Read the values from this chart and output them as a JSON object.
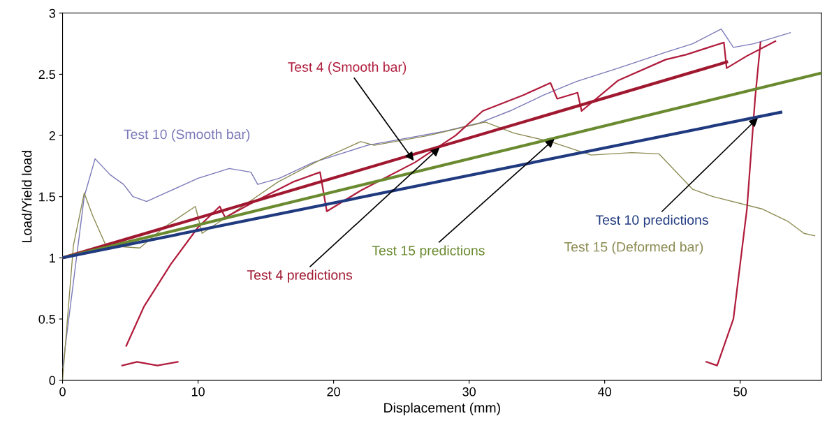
{
  "chart_data": {
    "type": "line",
    "xlabel": "Displacement (mm)",
    "ylabel": "Load/Yield load",
    "xlim": [
      0,
      56
    ],
    "ylim": [
      0,
      3
    ],
    "xticks": [
      0,
      10,
      20,
      30,
      40,
      50
    ],
    "yticks": [
      0,
      0.5,
      1,
      1.5,
      2,
      2.5,
      3
    ],
    "grid": false,
    "legend": false,
    "series": [
      {
        "name": "Test 10 (Smooth bar)",
        "color": "#7a78b8",
        "x": [
          0,
          0.8,
          1.6,
          2.4,
          3.5,
          4.5,
          5.2,
          6.2,
          8,
          10,
          12.3,
          13.9,
          14.4,
          16,
          18.5,
          20.5,
          22.5,
          25,
          28,
          30.7,
          33,
          35.5,
          37.9,
          41,
          44.5,
          46.5,
          48.6,
          49.5,
          51,
          53.7
        ],
        "values": [
          0.1,
          0.8,
          1.5,
          1.81,
          1.68,
          1.6,
          1.5,
          1.46,
          1.55,
          1.65,
          1.73,
          1.7,
          1.6,
          1.65,
          1.78,
          1.85,
          1.92,
          1.97,
          2.03,
          2.1,
          2.2,
          2.33,
          2.44,
          2.55,
          2.68,
          2.75,
          2.87,
          2.72,
          2.75,
          2.84
        ]
      },
      {
        "name": "Test 15 (Deformed bar)",
        "color": "#8c8a52",
        "x": [
          0,
          0.8,
          1.6,
          2.2,
          3.2,
          5.7,
          7.5,
          9.8,
          10.3,
          13,
          15.9,
          19,
          22,
          23,
          27,
          31.2,
          33.3,
          36,
          39,
          42,
          44,
          46.5,
          48,
          51.6,
          53.5,
          54.7,
          55.5
        ],
        "values": [
          0,
          1.1,
          1.53,
          1.35,
          1.1,
          1.08,
          1.25,
          1.42,
          1.2,
          1.4,
          1.62,
          1.8,
          1.95,
          1.92,
          2.0,
          2.11,
          2.02,
          1.95,
          1.84,
          1.86,
          1.85,
          1.56,
          1.5,
          1.4,
          1.3,
          1.2,
          1.18
        ]
      },
      {
        "name": "Test 4 (Smooth bar)",
        "color": "#b01c3c",
        "x": [
          4.4,
          5.5,
          7,
          8.5,
          null,
          4.7,
          6,
          8,
          10,
          11.6,
          12,
          14,
          17,
          19,
          19.5,
          22,
          26,
          29,
          31,
          34,
          36,
          36.5,
          38,
          38.3,
          41,
          44.5,
          46,
          48.8,
          49,
          50.5,
          52.6,
          null,
          47.5,
          48.3,
          49.5,
          50.5,
          51.1,
          51.5
        ],
        "values": [
          0.12,
          0.15,
          0.12,
          0.15,
          null,
          0.28,
          0.6,
          0.95,
          1.25,
          1.42,
          1.33,
          1.45,
          1.62,
          1.7,
          1.38,
          1.55,
          1.78,
          2.0,
          2.2,
          2.33,
          2.43,
          2.3,
          2.35,
          2.2,
          2.45,
          2.62,
          2.66,
          2.76,
          2.55,
          2.65,
          2.77,
          null,
          0.15,
          0.12,
          0.5,
          1.4,
          2.3,
          2.76
        ]
      },
      {
        "name": "Test 4 predictions",
        "color": "#a01830",
        "x": [
          0,
          49
        ],
        "values": [
          1,
          2.6
        ]
      },
      {
        "name": "Test 15 predictions",
        "color": "#6a8a30",
        "x": [
          0,
          56
        ],
        "values": [
          1,
          2.51
        ]
      },
      {
        "name": "Test 10 predictions",
        "color": "#203a80",
        "x": [
          0,
          53
        ],
        "values": [
          1,
          2.19
        ]
      }
    ]
  }
}
